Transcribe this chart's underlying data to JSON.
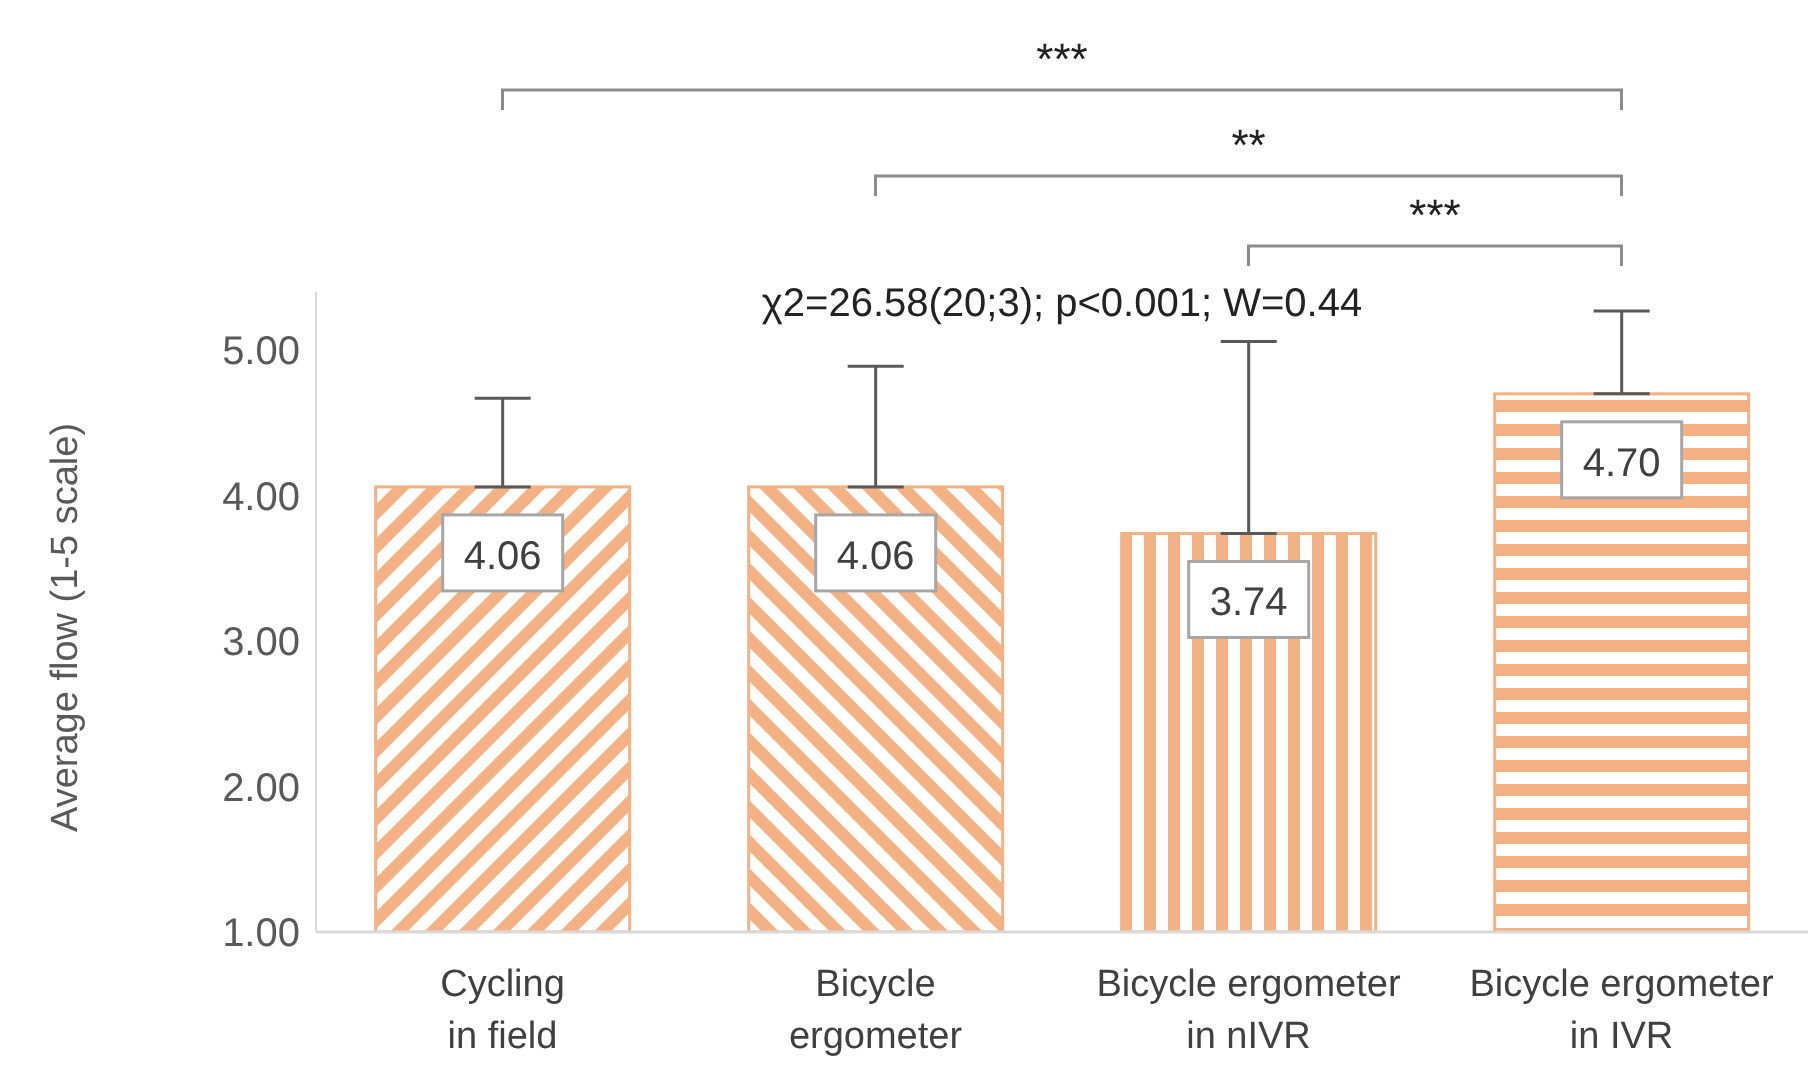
{
  "chart_data": {
    "type": "bar",
    "ylabel": "Average flow (1-5 scale)",
    "categories": [
      "Cycling\nin field",
      "Bicycle\nergometer",
      "Bicycle ergometer\nin nIVR",
      "Bicycle ergometer\nin IVR"
    ],
    "values": [
      4.06,
      4.06,
      3.74,
      4.7
    ],
    "value_labels": [
      "4.06",
      "4.06",
      "3.74",
      "4.70"
    ],
    "errors": [
      [
        4.06,
        4.67
      ],
      [
        4.06,
        4.89
      ],
      [
        3.74,
        5.06
      ],
      [
        4.7,
        5.27
      ]
    ],
    "color": "#f4b183",
    "ylim": [
      1,
      5.4
    ],
    "yticks": [
      {
        "value": 1,
        "label": "1.00"
      },
      {
        "value": 2,
        "label": "2.00"
      },
      {
        "value": 3,
        "label": "3.00"
      },
      {
        "value": 4,
        "label": "4.00"
      },
      {
        "value": 5,
        "label": "5.00"
      }
    ],
    "grid": false,
    "legend": false,
    "annotations": [
      "***",
      "**",
      "***",
      "χ2=26.58(20;3); p<0.001; W=0.44"
    ]
  }
}
